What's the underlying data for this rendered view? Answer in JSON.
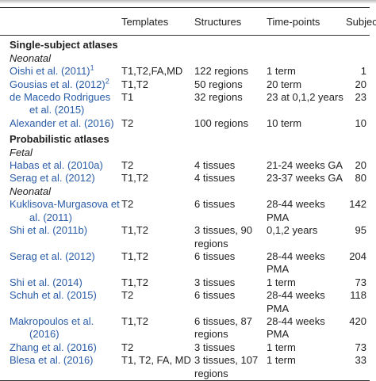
{
  "table": {
    "header": [
      "Templates",
      "Structures",
      "Time-points",
      "Subjects"
    ],
    "sections": [
      {
        "title": "Single-subject atlases",
        "groups": [
          {
            "label": "Neonatal",
            "rows": [
              {
                "reference": "Oishi et al. (2011)",
                "note": "1",
                "templates": "T1,T2,FA,MD",
                "structures": "122 regions",
                "timepoints": "1 term",
                "subjects": 1
              },
              {
                "reference": "Gousias et al. (2012)",
                "note": "2",
                "templates": "T1,T2",
                "structures": "50 regions",
                "timepoints": "20 term",
                "subjects": 20
              },
              {
                "reference": "de Macedo Rodrigues et al. (2015)",
                "templates": "T1",
                "structures": "32 regions",
                "timepoints": "23 at 0,1,2 years",
                "subjects": 23
              },
              {
                "reference": "Alexander et al. (2016)",
                "templates": "T2",
                "structures": "100 regions",
                "timepoints": "10 term",
                "subjects": 10
              }
            ]
          }
        ]
      },
      {
        "title": "Probabilistic atlases",
        "groups": [
          {
            "label": "Fetal",
            "rows": [
              {
                "reference": "Habas et al. (2010a)",
                "templates": "T2",
                "structures": "4 tissues",
                "timepoints": "21-24 weeks GA",
                "subjects": 20
              },
              {
                "reference": "Serag et al. (2012)",
                "templates": "T1,T2",
                "structures": "4 tissues",
                "timepoints": "23-37 weeks GA",
                "subjects": 80
              }
            ]
          },
          {
            "label": "Neonatal",
            "rows": [
              {
                "reference": "Kuklisova-Murgasova et al. (2011)",
                "templates": "T2",
                "structures": "6 tissues",
                "timepoints": "28-44 weeks PMA",
                "subjects": 142
              },
              {
                "reference": "Shi et al. (2011b)",
                "templates": "T1,T2",
                "structures": "3 tissues, 90 regions",
                "timepoints": "0,1,2 years",
                "subjects": 95
              },
              {
                "reference": "Serag et al. (2012)",
                "templates": "T1,T2",
                "structures": "6 tissues",
                "timepoints": "28-44 weeks PMA",
                "subjects": 204
              },
              {
                "reference": "Shi et al. (2014)",
                "templates": "T1,T2",
                "structures": "3 tissues",
                "timepoints": "1 term",
                "subjects": 73
              },
              {
                "reference": "Schuh et al. (2015)",
                "templates": "T2",
                "structures": "6 tissues",
                "timepoints": "28-44 weeks PMA",
                "subjects": 118
              },
              {
                "reference": "Makropoulos et al. (2016)",
                "templates": "T1,T2",
                "structures": "6 tissues, 87 regions",
                "timepoints": "28-44 weeks PMA",
                "subjects": 420
              },
              {
                "reference": "Zhang et al. (2016)",
                "templates": "T2",
                "structures": "3 tissues",
                "timepoints": "1 term",
                "subjects": 73
              },
              {
                "reference": "Blesa et al. (2016)",
                "templates": "T1, T2, FA, MD",
                "structures": "3 tissues, 107 regions",
                "timepoints": "1 term",
                "subjects": 33
              }
            ]
          }
        ]
      }
    ]
  }
}
